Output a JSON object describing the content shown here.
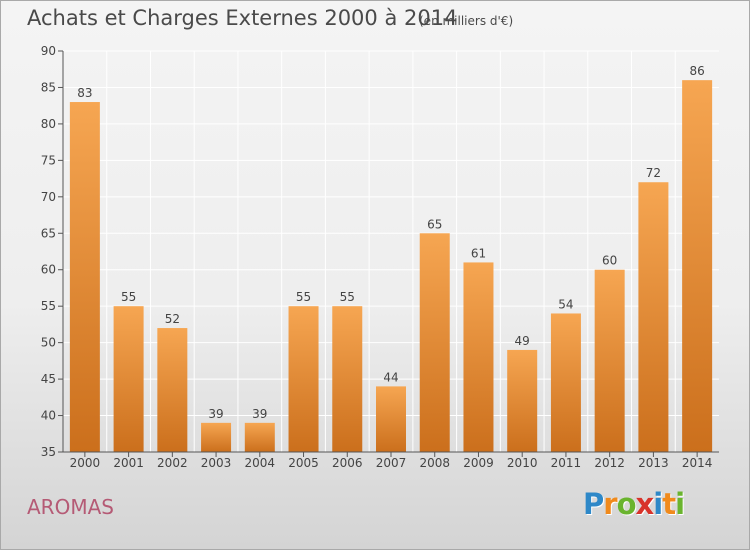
{
  "header": {
    "title": "Achats et Charges Externes 2000 à 2014",
    "subtitle": "(en milliers d'€)"
  },
  "footer": {
    "commune": "AROMAS",
    "logo_text": "Proxiti",
    "logo_letters": [
      {
        "ch": "P",
        "color": "#2e88c8"
      },
      {
        "ch": "r",
        "color": "#f08a1c"
      },
      {
        "ch": "o",
        "color": "#6ab42e"
      },
      {
        "ch": "x",
        "color": "#d8332a"
      },
      {
        "ch": "i",
        "color": "#2e88c8"
      },
      {
        "ch": "t",
        "color": "#f08a1c"
      },
      {
        "ch": "i",
        "color": "#6ab42e"
      }
    ]
  },
  "colors": {
    "bar_light": "#f6a652",
    "bar_dark": "#cb6f1c",
    "axis": "#555555",
    "grid": "#ffffff"
  },
  "chart_data": {
    "type": "bar",
    "title": "Achats et Charges Externes 2000 à 2014",
    "subtitle": "(en milliers d'€)",
    "xlabel": "",
    "ylabel": "",
    "ylim": [
      35,
      90
    ],
    "ytick_step": 5,
    "grid": true,
    "categories": [
      "2000",
      "2001",
      "2002",
      "2003",
      "2004",
      "2005",
      "2006",
      "2007",
      "2008",
      "2009",
      "2010",
      "2011",
      "2012",
      "2013",
      "2014"
    ],
    "values": [
      83,
      55,
      52,
      39,
      39,
      55,
      55,
      44,
      65,
      61,
      49,
      54,
      60,
      72,
      86
    ]
  }
}
